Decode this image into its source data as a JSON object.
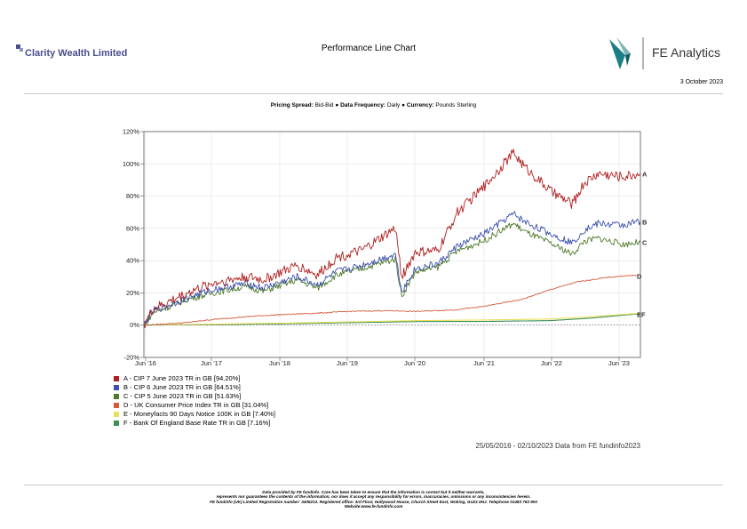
{
  "header": {
    "company_name": "Clarity Wealth Limited",
    "page_title": "Performance Line Chart",
    "provider_name": "FE Analytics",
    "report_date": "3 October 2023"
  },
  "subtitle": {
    "pricing_label": "Pricing Spread:",
    "pricing_value": " Bid-Bid ",
    "frequency_label": "Data Frequency:",
    "frequency_value": " Daily ",
    "currency_label": "Currency:",
    "currency_value": " Pounds Sterling",
    "bullet": "●"
  },
  "chart_data": {
    "type": "line",
    "x_tick_labels": [
      "Jun '16",
      "Jun '17",
      "Jun '18",
      "Jun '19",
      "Jun '20",
      "Jun '21",
      "Jun '22",
      "Jun '23"
    ],
    "x_start": "2016-05-25",
    "x_end": "2023-10-02",
    "ylim": [
      -20,
      120
    ],
    "y_ticks": [
      -20,
      0,
      20,
      40,
      60,
      80,
      100,
      120
    ],
    "y_tick_labels": [
      "-20%",
      "0%",
      "20%",
      "40%",
      "60%",
      "80%",
      "100%",
      "120%"
    ],
    "grid": true,
    "series": [
      {
        "id": "A",
        "color": "#b01e1e",
        "name": "A - CIP 7 June 2023 TR in GB [94.20%]",
        "points": [
          [
            "2016-05-25",
            0
          ],
          [
            "2016-07-15",
            10
          ],
          [
            "2016-10-01",
            14
          ],
          [
            "2017-01-15",
            20
          ],
          [
            "2017-06-01",
            26
          ],
          [
            "2017-12-01",
            30
          ],
          [
            "2018-03-01",
            28
          ],
          [
            "2018-09-01",
            37
          ],
          [
            "2018-12-20",
            31
          ],
          [
            "2019-04-01",
            42
          ],
          [
            "2019-08-15",
            46
          ],
          [
            "2020-02-15",
            60
          ],
          [
            "2020-03-20",
            30
          ],
          [
            "2020-06-01",
            45
          ],
          [
            "2020-10-01",
            46
          ],
          [
            "2021-01-15",
            70
          ],
          [
            "2021-06-01",
            85
          ],
          [
            "2021-11-15",
            107
          ],
          [
            "2022-01-15",
            98
          ],
          [
            "2022-06-15",
            82
          ],
          [
            "2022-09-30",
            75
          ],
          [
            "2022-12-01",
            88
          ],
          [
            "2023-02-15",
            94
          ],
          [
            "2023-07-01",
            92
          ],
          [
            "2023-10-02",
            94.2
          ]
        ]
      },
      {
        "id": "B",
        "color": "#3c4fb0",
        "name": "B - CIP 6 June 2023 TR in GB [64.51%]",
        "points": [
          [
            "2016-05-25",
            0
          ],
          [
            "2016-07-15",
            9
          ],
          [
            "2016-10-01",
            12
          ],
          [
            "2017-01-15",
            17
          ],
          [
            "2017-06-01",
            22
          ],
          [
            "2017-12-01",
            26
          ],
          [
            "2018-03-01",
            23
          ],
          [
            "2018-09-01",
            30
          ],
          [
            "2018-12-20",
            25
          ],
          [
            "2019-04-01",
            33
          ],
          [
            "2019-08-15",
            37
          ],
          [
            "2020-02-15",
            44
          ],
          [
            "2020-03-20",
            21
          ],
          [
            "2020-06-01",
            35
          ],
          [
            "2020-10-01",
            38
          ],
          [
            "2021-01-15",
            49
          ],
          [
            "2021-06-01",
            56
          ],
          [
            "2021-11-15",
            69
          ],
          [
            "2022-01-15",
            64
          ],
          [
            "2022-06-15",
            56
          ],
          [
            "2022-09-30",
            51
          ],
          [
            "2022-12-01",
            59
          ],
          [
            "2023-02-15",
            63
          ],
          [
            "2023-07-01",
            62
          ],
          [
            "2023-10-02",
            64.51
          ]
        ]
      },
      {
        "id": "C",
        "color": "#4d7a2a",
        "name": "C - CIP 5 June 2023 TR in GB [51.63%]",
        "points": [
          [
            "2016-05-25",
            0
          ],
          [
            "2016-07-15",
            8
          ],
          [
            "2016-10-01",
            11
          ],
          [
            "2017-01-15",
            16
          ],
          [
            "2017-06-01",
            20
          ],
          [
            "2017-12-01",
            24
          ],
          [
            "2018-03-01",
            21
          ],
          [
            "2018-09-01",
            28
          ],
          [
            "2018-12-20",
            23
          ],
          [
            "2019-04-01",
            31
          ],
          [
            "2019-08-15",
            35
          ],
          [
            "2020-02-15",
            41
          ],
          [
            "2020-03-20",
            18
          ],
          [
            "2020-06-01",
            33
          ],
          [
            "2020-10-01",
            36
          ],
          [
            "2021-01-15",
            46
          ],
          [
            "2021-06-01",
            52
          ],
          [
            "2021-11-15",
            63
          ],
          [
            "2022-01-15",
            58
          ],
          [
            "2022-06-15",
            50
          ],
          [
            "2022-09-30",
            44
          ],
          [
            "2022-12-01",
            52
          ],
          [
            "2023-02-15",
            54
          ],
          [
            "2023-07-01",
            50
          ],
          [
            "2023-10-02",
            51.63
          ]
        ]
      },
      {
        "id": "D",
        "color": "#d45a3a",
        "name": "D - UK Consumer Price Index TR in GB [31.04%]",
        "points": [
          [
            "2016-05-25",
            0
          ],
          [
            "2017-01-01",
            1.5
          ],
          [
            "2017-06-01",
            3.5
          ],
          [
            "2018-01-01",
            5.5
          ],
          [
            "2018-06-01",
            6.5
          ],
          [
            "2019-01-01",
            7.5
          ],
          [
            "2019-06-01",
            8.5
          ],
          [
            "2020-01-01",
            9
          ],
          [
            "2020-06-01",
            8.5
          ],
          [
            "2021-01-01",
            9.5
          ],
          [
            "2021-06-01",
            11.5
          ],
          [
            "2022-01-01",
            16
          ],
          [
            "2022-06-01",
            22
          ],
          [
            "2022-11-01",
            27
          ],
          [
            "2023-04-01",
            29.5
          ],
          [
            "2023-07-01",
            30.5
          ],
          [
            "2023-10-02",
            31.04
          ]
        ]
      },
      {
        "id": "E",
        "color": "#e8e05a",
        "name": "E - Moneyfacts 90 Days Notice 100K in GB [7.40%]",
        "points": [
          [
            "2016-05-25",
            0
          ],
          [
            "2017-06-01",
            0.6
          ],
          [
            "2018-06-01",
            1.2
          ],
          [
            "2019-06-01",
            2
          ],
          [
            "2020-06-01",
            2.8
          ],
          [
            "2021-06-01",
            3.2
          ],
          [
            "2022-06-01",
            3.8
          ],
          [
            "2023-01-01",
            5.2
          ],
          [
            "2023-10-02",
            7.4
          ]
        ]
      },
      {
        "id": "F",
        "color": "#3f8f5a",
        "name": "F - Bank Of England Base Rate TR in GB [7.16%]",
        "points": [
          [
            "2016-05-25",
            0
          ],
          [
            "2017-06-01",
            0.3
          ],
          [
            "2018-06-01",
            0.8
          ],
          [
            "2019-06-01",
            1.5
          ],
          [
            "2020-06-01",
            2.2
          ],
          [
            "2021-06-01",
            2.3
          ],
          [
            "2022-06-01",
            2.8
          ],
          [
            "2023-01-01",
            4.3
          ],
          [
            "2023-10-02",
            7.16
          ]
        ]
      }
    ]
  },
  "footer": {
    "range_note": "25/05/2016 - 02/10/2023 Data from FE fundinfo2023",
    "disclaimer_lines": [
      "Data provided by FE fundinfo. Care has been taken to ensure that the information is correct but it neither warrants,",
      "represents nor guarantees the contents of the information, nor does it accept any responsibility for errors, inaccuracies, omissions or any inconsistencies herein.",
      "FE fundinfo (UK) Limited Registration number: 3405213. Registered office: 3rd Floor, Hollywood House, Church Street East, Woking, GU21 6HJ. Telephone 01483 783 900",
      "Website:www.fe-fundinfo.com"
    ]
  }
}
